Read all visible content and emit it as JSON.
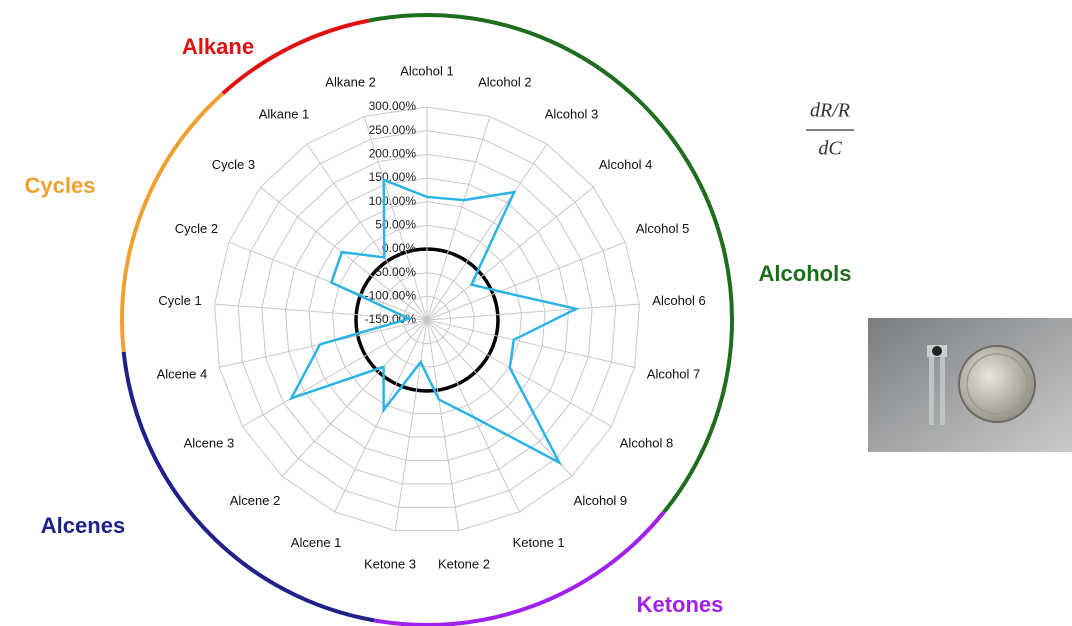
{
  "chart_data": {
    "type": "radar",
    "categories": [
      "Alcohol 1",
      "Alcohol 2",
      "Alcohol 3",
      "Alcohol 4",
      "Alcohol 5",
      "Alcohol 6",
      "Alcohol 7",
      "Alcohol 8",
      "Alcohol 9",
      "Ketone 1",
      "Ketone 2",
      "Ketone 3",
      "Alcene 1",
      "Alcene 2",
      "Alcene 3",
      "Alcene 4",
      "Cycle 1",
      "Cycle 2",
      "Cycle 3",
      "Alkane 1",
      "Alkane 2"
    ],
    "values": [
      110,
      115,
      177,
      -30,
      15,
      166,
      38,
      52,
      261,
      78,
      20,
      -60,
      61,
      -15,
      181,
      82,
      -112,
      67,
      80,
      10,
      160
    ],
    "color": "#2bb3e6",
    "rlim": [
      -150,
      300
    ],
    "rticks": [
      {
        "value": -150,
        "label": "-150.00%"
      },
      {
        "value": -100,
        "label": "-100.00%"
      },
      {
        "value": -50,
        "label": "-50.00%"
      },
      {
        "value": 0,
        "label": "0.00%"
      },
      {
        "value": 50,
        "label": "50.00%"
      },
      {
        "value": 100,
        "label": "100.00%"
      },
      {
        "value": 150,
        "label": "150.00%"
      },
      {
        "value": 200,
        "label": "200.00%"
      },
      {
        "value": 250,
        "label": "250.00%"
      },
      {
        "value": 300,
        "label": "300.00%"
      }
    ],
    "grid": true,
    "groups": [
      {
        "name": "Alcohols",
        "color": "#1e6e1e"
      },
      {
        "name": "Ketones",
        "color": "#a020f0"
      },
      {
        "name": "Alcenes",
        "color": "#20208a"
      },
      {
        "name": "Cycles",
        "color": "#f0a030"
      },
      {
        "name": "Alkane",
        "color": "#e01010"
      }
    ],
    "formula": {
      "numerator": "dR/R",
      "denominator": "dC"
    }
  }
}
